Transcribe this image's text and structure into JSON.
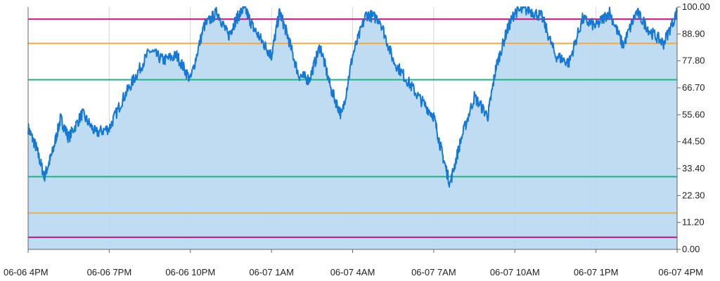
{
  "chart_data": {
    "type": "area",
    "title": "",
    "xlabel": "",
    "ylabel": "",
    "x_ticks": [
      "06-06 4PM",
      "06-06 7PM",
      "06-06 10PM",
      "06-07 1AM",
      "06-07 4AM",
      "06-07 7AM",
      "06-07 10AM",
      "06-07 1PM",
      "06-07 4PM"
    ],
    "y_ticks": [
      "0.00",
      "11.20",
      "22.30",
      "33.40",
      "44.50",
      "55.60",
      "66.70",
      "77.80",
      "88.90",
      "100.00"
    ],
    "ylim": [
      0,
      100
    ],
    "grid": true,
    "colors": {
      "series_line": "#1478d4",
      "series_fill": "#bcdaf2",
      "threshold_outer": "#c2147a",
      "threshold_middle": "#f2a94a",
      "threshold_inner": "#20b184",
      "grid": "#d6d6d6",
      "axis": "#666666"
    },
    "thresholds": [
      {
        "level": "outer",
        "value": 95
      },
      {
        "level": "middle",
        "value": 85
      },
      {
        "level": "inner",
        "value": 70
      },
      {
        "level": "inner",
        "value": 30
      },
      {
        "level": "middle",
        "value": 15
      },
      {
        "level": "outer",
        "value": 5
      }
    ],
    "series": [
      {
        "x_hours": [
          0,
          0.3,
          0.6,
          0.9,
          1.2,
          1.5,
          2.0,
          2.5,
          3.0,
          3.5,
          4.0,
          4.5,
          5.0,
          5.5,
          6.0,
          6.5,
          7.0,
          7.4,
          7.7,
          8.0,
          8.3,
          8.7,
          9.0,
          9.3,
          9.6,
          10.0,
          10.4,
          10.8,
          11.2,
          11.6,
          12.0,
          12.5,
          13.0,
          13.5,
          14.0,
          14.5,
          15.0,
          15.3,
          15.6,
          16.0,
          16.5,
          17.0,
          17.3,
          17.7,
          18.0,
          18.5,
          19.0,
          19.5,
          20.0,
          20.5,
          21.0,
          21.5,
          22.0,
          22.5,
          23.0,
          23.5,
          24.0
        ],
        "y": [
          50,
          42,
          30,
          40,
          54,
          46,
          56,
          48,
          50,
          62,
          72,
          82,
          78,
          80,
          70,
          92,
          98,
          88,
          95,
          100,
          92,
          85,
          80,
          98,
          88,
          72,
          70,
          84,
          66,
          55,
          80,
          97,
          95,
          78,
          70,
          62,
          55,
          40,
          27,
          45,
          63,
          55,
          75,
          90,
          98,
          99,
          96,
          80,
          77,
          95,
          92,
          98,
          84,
          98,
          90,
          85,
          98
        ]
      }
    ]
  }
}
